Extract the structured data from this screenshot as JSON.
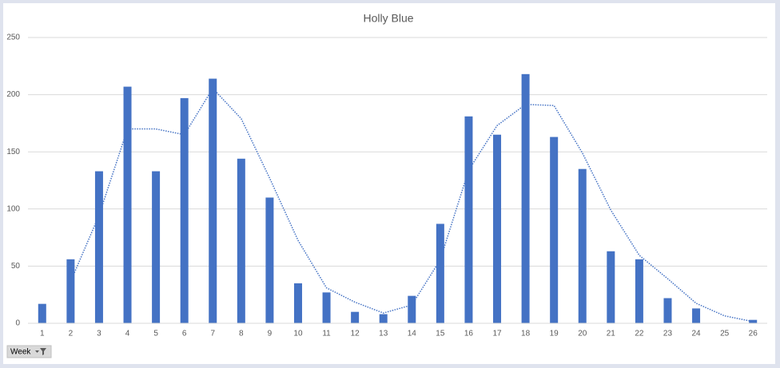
{
  "chart_data": {
    "type": "bar",
    "title": "Holly Blue",
    "categories": [
      "1",
      "2",
      "3",
      "4",
      "5",
      "6",
      "7",
      "8",
      "9",
      "10",
      "11",
      "12",
      "13",
      "14",
      "15",
      "16",
      "17",
      "18",
      "19",
      "20",
      "21",
      "22",
      "23",
      "24",
      "25",
      "26"
    ],
    "series": [
      {
        "type": "bar",
        "color": "#4472c4",
        "values": [
          17,
          56,
          133,
          207,
          133,
          197,
          214,
          144,
          110,
          35,
          27,
          10,
          8,
          24,
          87,
          181,
          165,
          218,
          163,
          135,
          63,
          56,
          22,
          13,
          0,
          3
        ]
      },
      {
        "type": "line",
        "color": "#4472c4",
        "style": "dotted",
        "values": [
          null,
          36.5,
          94.5,
          170,
          170,
          165,
          205.5,
          179,
          127,
          72.5,
          31,
          18.5,
          9,
          16,
          55.5,
          134,
          173,
          191.5,
          190.5,
          149,
          99,
          59.5,
          39,
          17.5,
          6.5,
          1.5
        ]
      }
    ],
    "ylim": [
      0,
      250
    ],
    "yticks": [
      0,
      50,
      100,
      150,
      200,
      250
    ],
    "grid": true,
    "field_button": "Week"
  }
}
